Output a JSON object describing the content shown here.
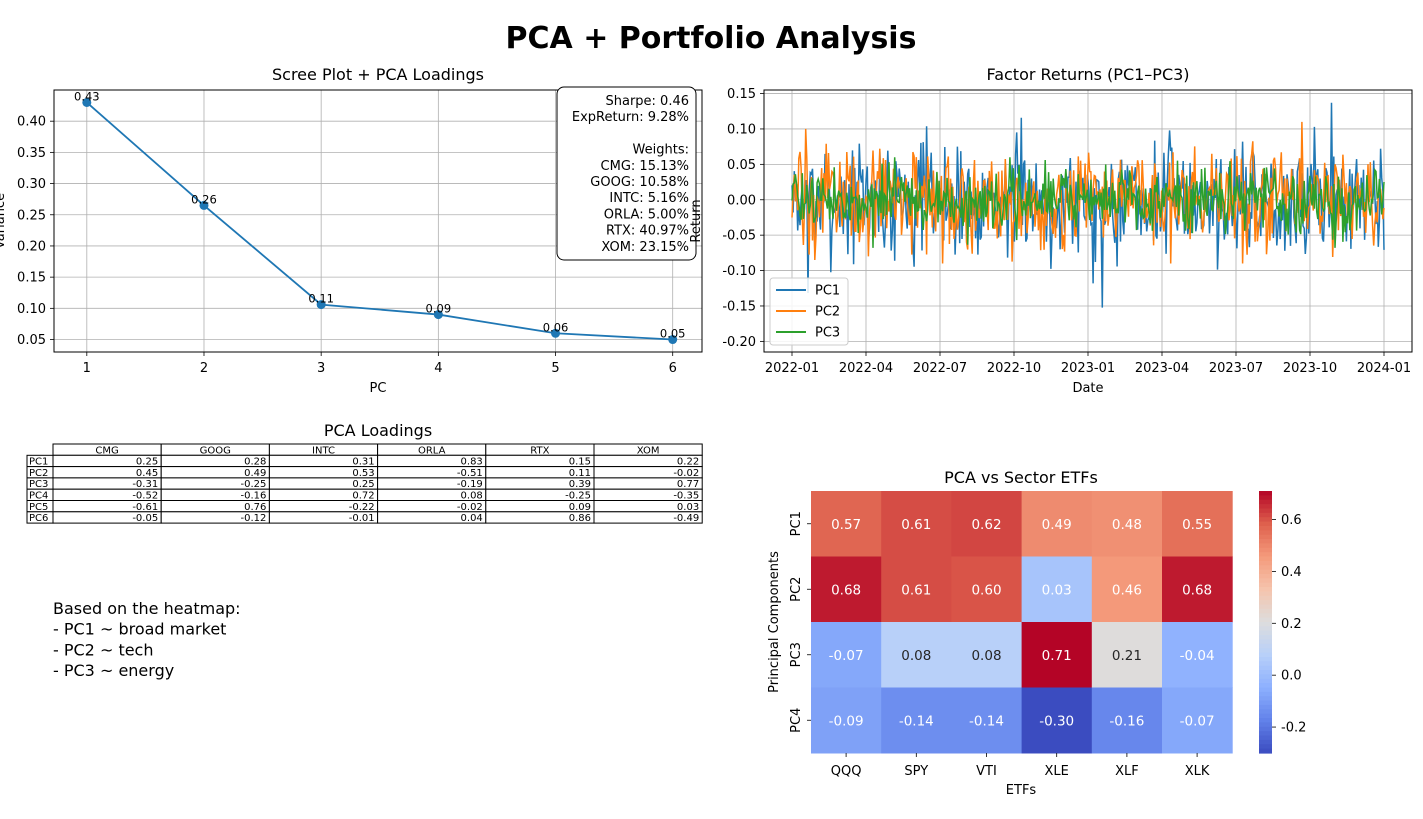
{
  "suptitle": "PCA + Portfolio Analysis",
  "chart_data": [
    {
      "type": "line",
      "title": "Scree Plot + PCA Loadings",
      "xlabel": "PC",
      "ylabel": "Variance",
      "x": [
        1,
        2,
        3,
        4,
        5,
        6
      ],
      "values": [
        0.43,
        0.265,
        0.106,
        0.09,
        0.06,
        0.05
      ],
      "point_labels": [
        "0.43",
        "0.26",
        "0.11",
        "0.09",
        "0.06",
        "0.05"
      ],
      "xticks": [
        "1",
        "2",
        "3",
        "4",
        "5",
        "6"
      ],
      "yticks": [
        "0.05",
        "0.10",
        "0.15",
        "0.20",
        "0.25",
        "0.30",
        "0.35",
        "0.40"
      ],
      "ylim": [
        0.03,
        0.45
      ],
      "xlim": [
        0.72,
        6.25
      ],
      "grid": true,
      "color": "#1f77b4",
      "annotation": [
        "Sharpe: 0.46",
        "ExpReturn: 9.28%",
        "",
        "Weights:",
        "CMG: 15.13%",
        "GOOG: 10.58%",
        "INTC: 5.16%",
        "ORLA: 5.00%",
        "RTX: 40.97%",
        "XOM: 23.15%"
      ]
    },
    {
      "type": "line",
      "title": "Factor Returns (PC1–PC3)",
      "xlabel": "Date",
      "ylabel": "Return",
      "xticks": [
        "2022-01",
        "2022-04",
        "2022-07",
        "2022-10",
        "2023-01",
        "2023-04",
        "2023-07",
        "2023-10",
        "2024-01"
      ],
      "yticks": [
        "-0.20",
        "-0.15",
        "-0.10",
        "-0.05",
        "0.00",
        "0.05",
        "0.10",
        "0.15"
      ],
      "ylim": [
        -0.215,
        0.155
      ],
      "grid": true,
      "legend_position": "bottom-left",
      "series": [
        {
          "name": "PC1",
          "color": "#1f77b4",
          "scale": 0.035,
          "amplitude_range": [
            -0.197,
            0.137
          ]
        },
        {
          "name": "PC2",
          "color": "#ff7f0e",
          "scale": 0.03,
          "amplitude_range": [
            -0.09,
            0.11
          ]
        },
        {
          "name": "PC3",
          "color": "#2ca02c",
          "scale": 0.02,
          "amplitude_range": [
            -0.068,
            0.06
          ]
        }
      ]
    },
    {
      "type": "table",
      "title": "PCA Loadings",
      "columns": [
        "CMG",
        "GOOG",
        "INTC",
        "ORLA",
        "RTX",
        "XOM"
      ],
      "rows": [
        "PC1",
        "PC2",
        "PC3",
        "PC4",
        "PC5",
        "PC6"
      ],
      "cells": [
        [
          "0.25",
          "0.28",
          "0.31",
          "0.83",
          "0.15",
          "0.22"
        ],
        [
          "0.45",
          "0.49",
          "0.53",
          "-0.51",
          "0.11",
          "-0.02"
        ],
        [
          "-0.31",
          "-0.25",
          "0.25",
          "-0.19",
          "0.39",
          "0.77"
        ],
        [
          "-0.52",
          "-0.16",
          "0.72",
          "0.08",
          "-0.25",
          "-0.35"
        ],
        [
          "-0.61",
          "0.76",
          "-0.22",
          "-0.02",
          "0.09",
          "0.03"
        ],
        [
          "-0.05",
          "-0.12",
          "-0.01",
          "0.04",
          "0.86",
          "-0.49"
        ]
      ]
    },
    {
      "type": "heatmap",
      "title": "PCA vs Sector ETFs",
      "xlabel": "ETFs",
      "ylabel": "Principal Components",
      "columns": [
        "QQQ",
        "SPY",
        "VTI",
        "XLE",
        "XLF",
        "XLK"
      ],
      "rows": [
        "PC1",
        "PC2",
        "PC3",
        "PC4"
      ],
      "values": [
        [
          0.57,
          0.61,
          0.62,
          0.49,
          0.48,
          0.55
        ],
        [
          0.68,
          0.61,
          0.6,
          0.03,
          0.46,
          0.68
        ],
        [
          -0.07,
          0.08,
          0.08,
          0.71,
          0.21,
          -0.04
        ],
        [
          -0.09,
          -0.14,
          -0.14,
          -0.3,
          -0.16,
          -0.07
        ]
      ],
      "labels": [
        [
          "0.57",
          "0.61",
          "0.62",
          "0.49",
          "0.48",
          "0.55"
        ],
        [
          "0.68",
          "0.61",
          "0.60",
          "0.03",
          "0.46",
          "0.68"
        ],
        [
          "-0.07",
          "0.08",
          "0.08",
          "0.71",
          "0.21",
          "-0.04"
        ],
        [
          "-0.09",
          "-0.14",
          "-0.14",
          "-0.30",
          "-0.16",
          "-0.07"
        ]
      ],
      "colormap": "coolwarm",
      "vmin": -0.3,
      "vmax": 0.71,
      "colorbar_ticks": [
        "-0.2",
        "0.0",
        "0.2",
        "0.4",
        "0.6"
      ]
    }
  ],
  "note": [
    "Based on the heatmap:",
    "- PC1 ~ broad market",
    "- PC2 ~ tech",
    "- PC3 ~ energy"
  ]
}
